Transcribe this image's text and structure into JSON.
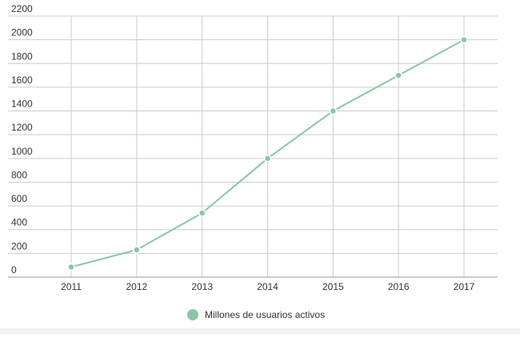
{
  "chart_data": {
    "type": "line",
    "title": "",
    "xlabel": "",
    "ylabel": "",
    "x": [
      "2011",
      "2012",
      "2013",
      "2014",
      "2015",
      "2016",
      "2017"
    ],
    "series": [
      {
        "name": "Millones de usuarios activos",
        "values": [
          85,
          230,
          540,
          1000,
          1400,
          1700,
          2000
        ],
        "color": "#8ac6a5"
      }
    ],
    "ylim": [
      0,
      2200
    ],
    "yticks": [
      0,
      200,
      400,
      600,
      800,
      1000,
      1200,
      1400,
      1600,
      1800,
      2000,
      2200
    ],
    "grid": true,
    "legend": "bottom",
    "colors": {
      "line": "#8ac6a5",
      "grid": "#cccccc",
      "axis": "#999999",
      "text": "#333333",
      "footer_band": "#f2f2f2"
    }
  }
}
